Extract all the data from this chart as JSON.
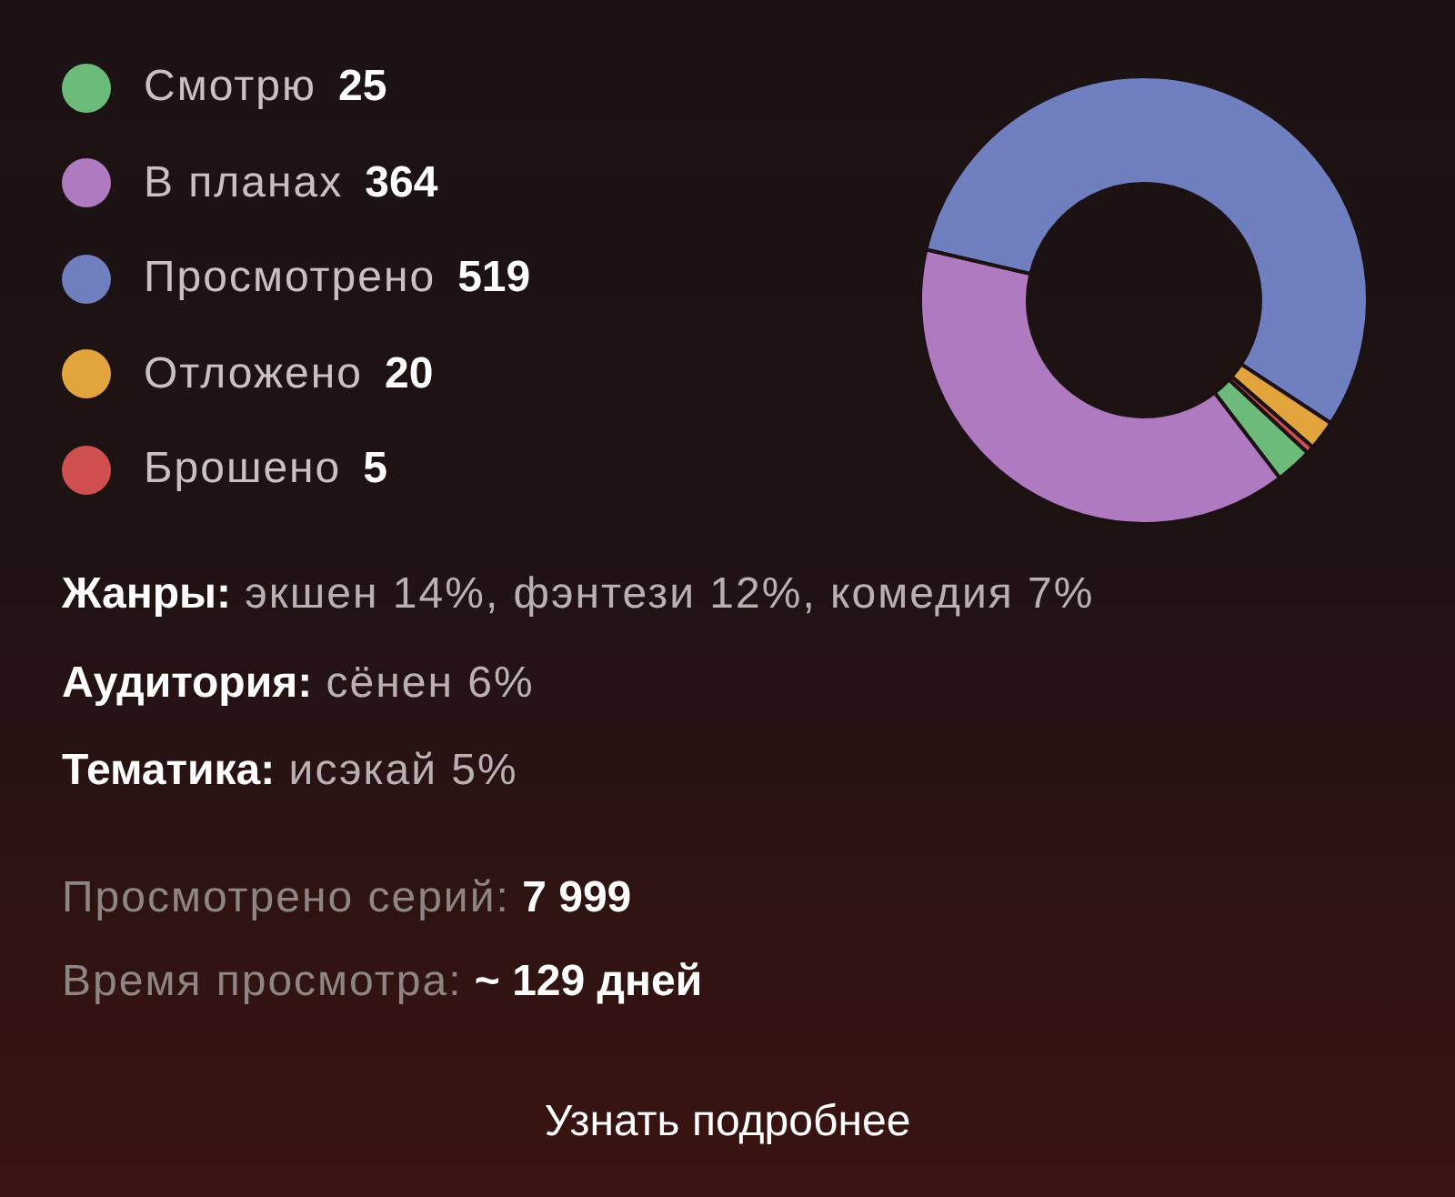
{
  "chart_data": {
    "type": "donut",
    "categories": [
      "Смотрю",
      "В планах",
      "Просмотрено",
      "Отложено",
      "Брошено"
    ],
    "values": [
      25,
      364,
      519,
      20,
      5
    ],
    "colors": [
      "#6dbb7a",
      "#b07ac0",
      "#6f7fc0",
      "#e2a43c",
      "#d05050"
    ],
    "legend": "left",
    "data_labels": true,
    "annotations": [
      "Жанры: экшен 14%, фэнтези 12%, комедия 7%",
      "Аудитория: сёнен 6%",
      "Тематика: исэкай 5%",
      "Просмотрено серий: 7 999",
      "Время просмотра: ~ 129 дней",
      "Узнать подробнее"
    ]
  }
}
